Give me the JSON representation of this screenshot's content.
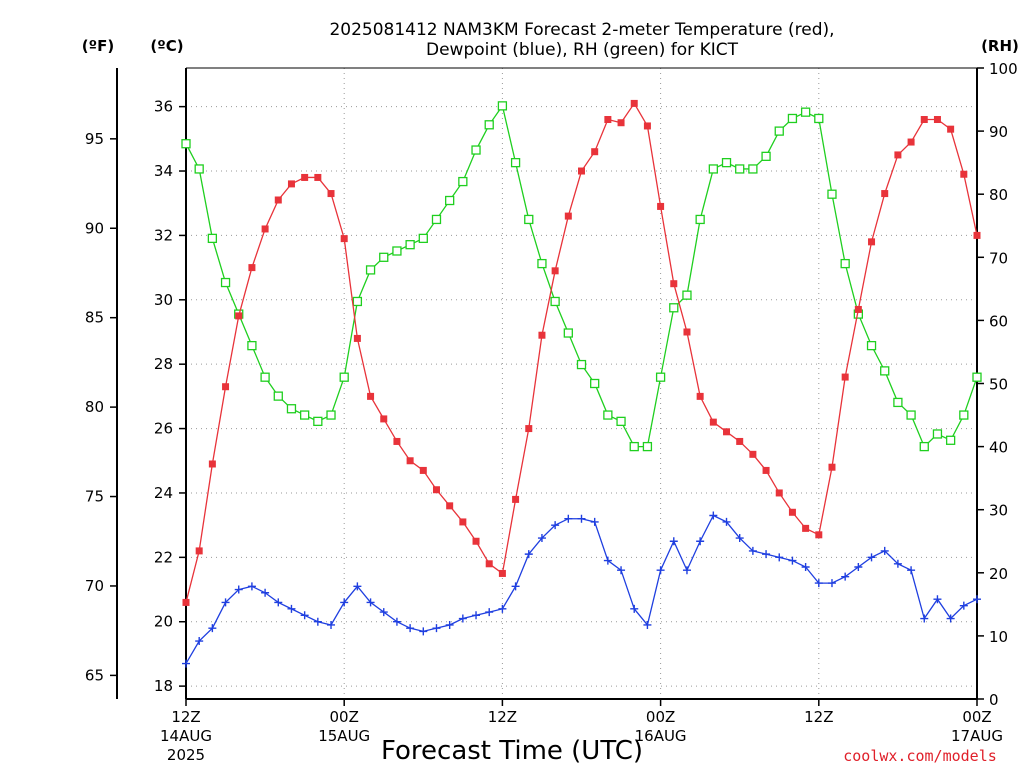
{
  "chart_data": {
    "type": "line",
    "title_line1": "2025081412 NAM3KM Forecast 2-meter Temperature (red),",
    "title_line2": "Dewpoint (blue), RH (green) for KICT",
    "axes": {
      "far_left_unit": "(ºF)",
      "left_unit": "(ºC)",
      "right_unit": "(RH)",
      "f_ticks": [
        65,
        70,
        75,
        80,
        85,
        90,
        95
      ],
      "c_ticks": [
        18,
        20,
        22,
        24,
        26,
        28,
        30,
        32,
        34,
        36
      ],
      "c_range": [
        17.6,
        37.2
      ],
      "rh_ticks": [
        0,
        10,
        20,
        30,
        40,
        50,
        60,
        70,
        80,
        90,
        100
      ],
      "rh_range": [
        0,
        100
      ],
      "x_range": [
        0,
        60
      ]
    },
    "x_ticks": [
      {
        "hour": 0,
        "line1": "12Z",
        "line2": "14AUG",
        "line3": "2025"
      },
      {
        "hour": 12,
        "line1": "00Z",
        "line2": "15AUG",
        "line3": ""
      },
      {
        "hour": 24,
        "line1": "12Z",
        "line2": "",
        "line3": ""
      },
      {
        "hour": 36,
        "line1": "00Z",
        "line2": "16AUG",
        "line3": ""
      },
      {
        "hour": 48,
        "line1": "12Z",
        "line2": "",
        "line3": ""
      },
      {
        "hour": 60,
        "line1": "00Z",
        "line2": "17AUG",
        "line3": ""
      }
    ],
    "xlabel": "Forecast Time (UTC)",
    "credit": "coolwx.com/models",
    "grid": true,
    "colors": {
      "temperature": "#e8333a",
      "dewpoint": "#1f3fe0",
      "rh": "#1fcf1f",
      "grid": "#9a9a9a"
    },
    "hours": [
      0,
      1,
      2,
      3,
      4,
      5,
      6,
      7,
      8,
      9,
      10,
      11,
      12,
      13,
      14,
      15,
      16,
      17,
      18,
      19,
      20,
      21,
      22,
      23,
      24,
      25,
      26,
      27,
      28,
      29,
      30,
      31,
      32,
      33,
      34,
      35,
      36,
      37,
      38,
      39,
      40,
      41,
      42,
      43,
      44,
      45,
      46,
      47,
      48,
      49,
      50,
      51,
      52,
      53,
      54,
      55,
      56,
      57,
      58,
      59,
      60
    ],
    "series": [
      {
        "name": "Temperature",
        "unit": "C",
        "values": [
          20.6,
          22.2,
          24.9,
          27.3,
          29.5,
          31.0,
          32.2,
          33.1,
          33.6,
          33.8,
          33.8,
          33.3,
          31.9,
          28.8,
          27.0,
          26.3,
          25.6,
          25.0,
          24.7,
          24.1,
          23.6,
          23.1,
          22.5,
          21.8,
          21.5,
          23.8,
          26.0,
          28.9,
          30.9,
          32.6,
          34.0,
          34.6,
          35.6,
          35.5,
          36.1,
          35.4,
          32.9,
          30.5,
          29.0,
          27.0,
          26.2,
          25.9,
          25.6,
          25.2,
          24.7,
          24.0,
          23.4,
          22.9,
          22.7,
          24.8,
          27.6,
          29.7,
          31.8,
          33.3,
          34.5,
          34.9,
          35.6,
          35.6,
          35.3,
          33.9,
          32.0
        ]
      },
      {
        "name": "Dewpoint",
        "unit": "C",
        "values": [
          18.7,
          19.4,
          19.8,
          20.6,
          21.0,
          21.1,
          20.9,
          20.6,
          20.4,
          20.2,
          20.0,
          19.9,
          20.6,
          21.1,
          20.6,
          20.3,
          20.0,
          19.8,
          19.7,
          19.8,
          19.9,
          20.1,
          20.2,
          20.3,
          20.4,
          21.1,
          22.1,
          22.6,
          23.0,
          23.2,
          23.2,
          23.1,
          21.9,
          21.6,
          20.4,
          19.9,
          21.6,
          22.5,
          21.6,
          22.5,
          23.3,
          23.1,
          22.6,
          22.2,
          22.1,
          22.0,
          21.9,
          21.7,
          21.2,
          21.2,
          21.4,
          21.7,
          22.0,
          22.2,
          21.8,
          21.6,
          20.1,
          20.7,
          20.1,
          20.5,
          20.7
        ]
      },
      {
        "name": "RH",
        "unit": "%",
        "values": [
          88,
          84,
          73,
          66,
          61,
          56,
          51,
          48,
          46,
          45,
          44,
          45,
          51,
          63,
          68,
          70,
          71,
          72,
          73,
          76,
          79,
          82,
          87,
          91,
          94,
          85,
          76,
          69,
          63,
          58,
          53,
          50,
          45,
          44,
          40,
          40,
          51,
          62,
          64,
          76,
          84,
          85,
          84,
          84,
          86,
          90,
          92,
          93,
          92,
          80,
          69,
          61,
          56,
          52,
          47,
          45,
          40,
          42,
          41,
          45,
          51
        ]
      }
    ]
  }
}
